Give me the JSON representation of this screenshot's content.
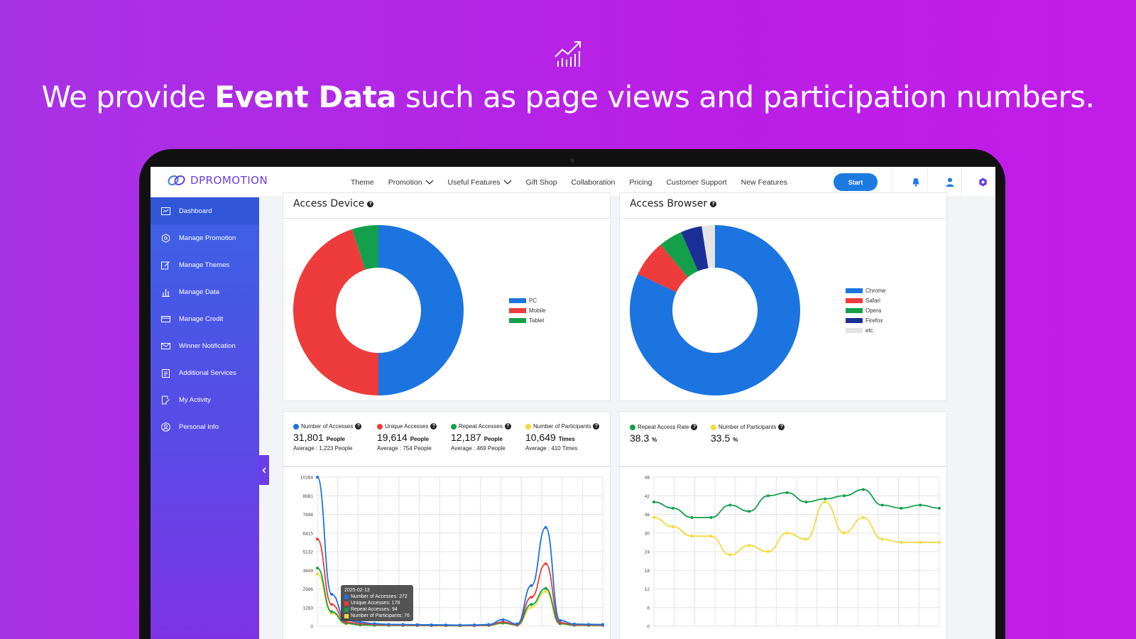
{
  "hero": {
    "headline_pre": "We provide ",
    "headline_bold": "Event Data",
    "headline_post": " such as page views and participation numbers.",
    "icon": "chart-growth-icon"
  },
  "app": {
    "logo": "DPROMOTION",
    "nav": [
      "Theme",
      "Promotion",
      "Useful Features",
      "Gift Shop",
      "Collaboration",
      "Pricing",
      "Customer Support",
      "New Features"
    ],
    "start_label": "Start"
  },
  "sidebar": {
    "items": [
      {
        "label": "Dashboard",
        "icon": "dashboard-icon"
      },
      {
        "label": "Manage Promotion",
        "icon": "gear-icon"
      },
      {
        "label": "Manage Themes",
        "icon": "edit-icon"
      },
      {
        "label": "Manage Data",
        "icon": "bar-chart-icon"
      },
      {
        "label": "Manage Credit",
        "icon": "card-icon"
      },
      {
        "label": "Winner Notification",
        "icon": "mail-icon"
      },
      {
        "label": "Additional Services",
        "icon": "clipboard-icon"
      },
      {
        "label": "My Activity",
        "icon": "activity-icon"
      },
      {
        "label": "Personal Info",
        "icon": "user-circle-icon"
      }
    ]
  },
  "access_device": {
    "title": "Access Device",
    "chart_data": {
      "type": "pie",
      "labels": [
        "PC",
        "Mobile",
        "Tablet"
      ],
      "values": [
        50,
        45,
        5
      ],
      "colors": [
        "#1c74e0",
        "#ee3b3b",
        "#14a04a"
      ]
    }
  },
  "access_browser": {
    "title": "Access Browser",
    "chart_data": {
      "type": "pie",
      "labels": [
        "Chrome",
        "Safari",
        "Opera",
        "Firefox",
        "etc."
      ],
      "values": [
        82,
        7,
        4.5,
        4,
        2.5
      ],
      "colors": [
        "#1c74e0",
        "#ee3b3b",
        "#14a04a",
        "#1b2f96",
        "#e4e4e4"
      ]
    }
  },
  "stats_left": [
    {
      "label": "Number of Accesses",
      "color": "#1c74e0",
      "value": "31,801",
      "unit": "People",
      "avg": "Average : 1,223 People"
    },
    {
      "label": "Unique Accesses",
      "color": "#ee3b3b",
      "value": "19,614",
      "unit": "People",
      "avg": "Average : 754 People"
    },
    {
      "label": "Repeat Accesses",
      "color": "#14a04a",
      "value": "12,187",
      "unit": "People",
      "avg": "Average : 469 People"
    },
    {
      "label": "Number of Participants",
      "color": "#f5d93a",
      "value": "10,649",
      "unit": "Times",
      "avg": "Average : 410 Times"
    }
  ],
  "stats_right": [
    {
      "label": "Repeat Access Rate",
      "color": "#14a04a",
      "value": "38.3",
      "unit": "%"
    },
    {
      "label": "Number of Participants",
      "color": "#f5d93a",
      "value": "33.5",
      "unit": "%"
    }
  ],
  "line_left": {
    "chart_data": {
      "type": "line",
      "y_ticks": [
        "10264",
        "8981",
        "7698",
        "6415",
        "5132",
        "3849",
        "2566",
        "1283",
        "0"
      ],
      "ylim": [
        0,
        10264
      ],
      "series": [
        {
          "color": "#1c74e0",
          "values": [
            10264,
            2200,
            420,
            272,
            180,
            130,
            120,
            110,
            100,
            90,
            80,
            90,
            120,
            450,
            160,
            2800,
            6800,
            400,
            150,
            130,
            120
          ]
        },
        {
          "color": "#ee3b3b",
          "values": [
            6000,
            1500,
            280,
            178,
            120,
            90,
            80,
            75,
            70,
            60,
            55,
            60,
            80,
            300,
            110,
            2000,
            4300,
            250,
            100,
            90,
            80
          ]
        },
        {
          "color": "#14a04a",
          "values": [
            4000,
            1000,
            200,
            94,
            70,
            60,
            55,
            50,
            45,
            40,
            38,
            40,
            55,
            220,
            80,
            1500,
            2600,
            180,
            70,
            60,
            55
          ]
        },
        {
          "color": "#f5d93a",
          "values": [
            3600,
            900,
            180,
            76,
            60,
            50,
            45,
            42,
            40,
            36,
            34,
            36,
            50,
            200,
            70,
            1300,
            2400,
            160,
            60,
            55,
            50
          ]
        }
      ]
    },
    "tooltip": {
      "date": "2025-02-13",
      "rows": [
        "Number of Accesses: 272",
        "Unique Accesses: 178",
        "Repeat Accesses: 94",
        "Number of Participants: 76"
      ]
    }
  },
  "line_right": {
    "chart_data": {
      "type": "line",
      "y_ticks": [
        "48",
        "42",
        "36",
        "30",
        "24",
        "18",
        "12",
        "6",
        "0"
      ],
      "ylim": [
        0,
        48
      ],
      "series": [
        {
          "color": "#14a04a",
          "values": [
            40,
            38,
            35,
            35,
            39,
            37,
            42,
            43,
            40,
            41,
            42,
            44,
            39,
            38,
            39,
            38
          ]
        },
        {
          "color": "#f5d93a",
          "values": [
            35,
            32,
            29,
            29,
            23,
            26,
            24,
            30,
            28,
            40,
            30,
            35,
            28,
            27,
            27,
            27
          ]
        }
      ]
    }
  }
}
